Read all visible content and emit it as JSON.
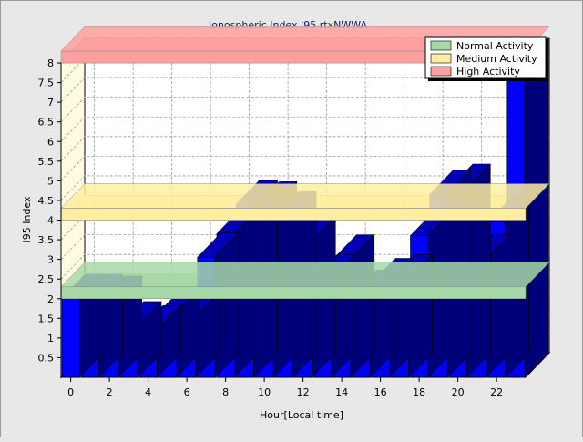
{
  "chart_data": {
    "type": "bar",
    "title": "Ionospheric Index I95 rtxNWWA",
    "xlabel": "Hour[Local time]",
    "ylabel": "I95 Index",
    "ylim": [
      0,
      8
    ],
    "yticks": [
      "0.5",
      "1",
      "1.5",
      "2",
      "2.5",
      "3",
      "3.5",
      "4",
      "4.5",
      "5",
      "5.5",
      "6",
      "6.5",
      "7",
      "7.5",
      "8"
    ],
    "xticks": [
      "0",
      "2",
      "4",
      "6",
      "8",
      "10",
      "12",
      "14",
      "16",
      "18",
      "20",
      "22"
    ],
    "x": [
      0,
      1,
      2,
      3,
      4,
      5,
      6,
      7,
      8,
      9,
      10,
      11,
      12,
      13,
      14,
      15,
      16,
      17,
      18,
      19,
      20,
      21,
      22,
      23
    ],
    "series": [
      {
        "values": [
          2.0,
          2.0,
          1.95,
          1.3,
          1.2,
          1.65,
          1.55,
          3.05,
          3.65,
          4.4,
          4.35,
          4.1,
          3.45,
          2.5,
          3.0,
          2.1,
          2.4,
          2.5,
          3.6,
          4.65,
          4.8,
          3.0,
          3.95,
          8.0
        ],
        "color": "#0000ff"
      }
    ],
    "bands": [
      {
        "name": "Normal Activity",
        "from": 2.0,
        "to": 2.3,
        "color": "#a8d8a8"
      },
      {
        "name": "Medium Activity",
        "from": 4.0,
        "to": 4.3,
        "color": "#ffeea0"
      },
      {
        "name": "High Activity",
        "from": 8.0,
        "to": 8.3,
        "color": "#ffa0a0"
      }
    ],
    "grid": true,
    "legend_position": "top-right"
  }
}
